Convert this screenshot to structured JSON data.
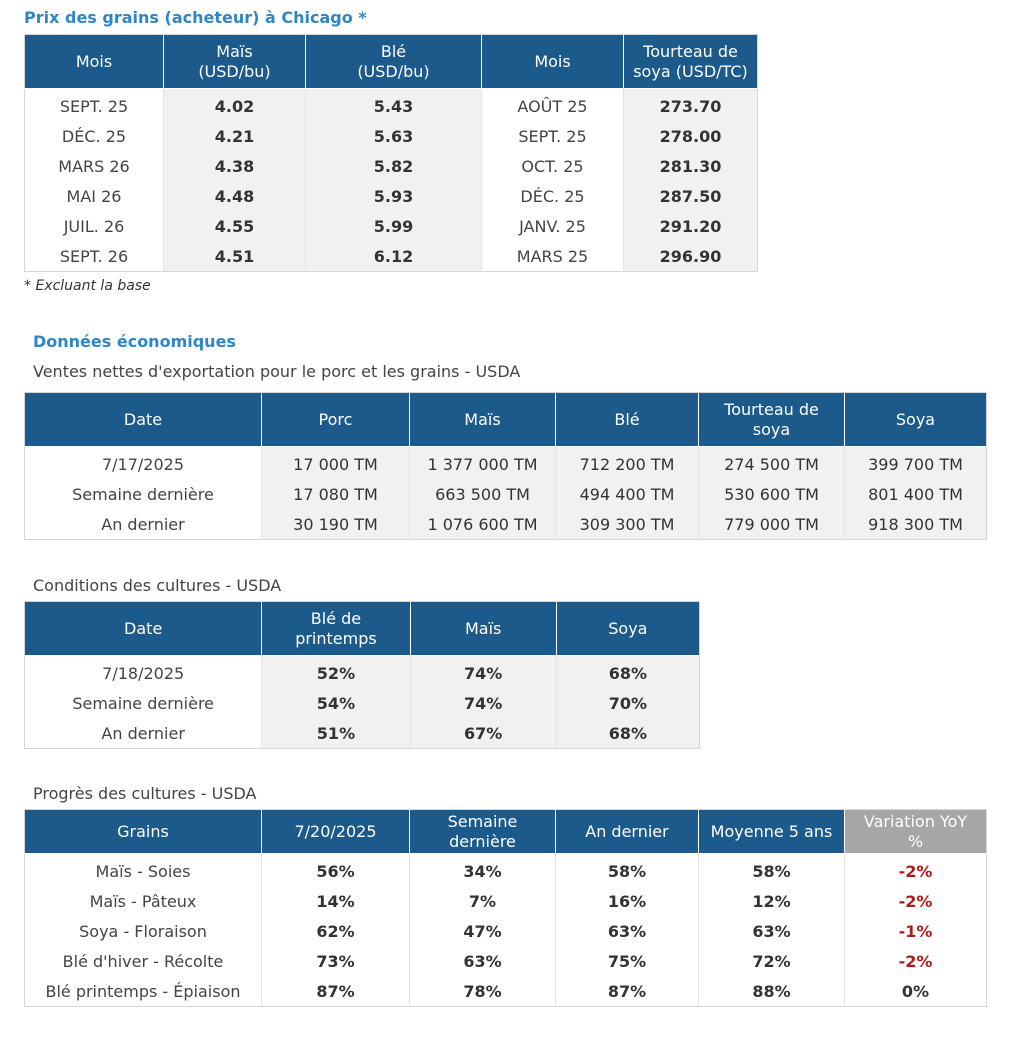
{
  "grain": {
    "title": "Prix des grains (acheteur) à Chicago *",
    "headers": [
      "Mois",
      "Maïs\n(USD/bu)",
      "Blé\n(USD/bu)",
      "Mois",
      "Tourteau de\nsoya (USD/TC)"
    ],
    "rows": [
      [
        "SEPT. 25",
        "4.02",
        "5.43",
        "AOÛT 25",
        "273.70"
      ],
      [
        "DÉC. 25",
        "4.21",
        "5.63",
        "SEPT. 25",
        "278.00"
      ],
      [
        "MARS 26",
        "4.38",
        "5.82",
        "OCT. 25",
        "281.30"
      ],
      [
        "MAI 26",
        "4.48",
        "5.93",
        "DÉC. 25",
        "287.50"
      ],
      [
        "JUIL. 26",
        "4.55",
        "5.99",
        "JANV. 25",
        "291.20"
      ],
      [
        "SEPT. 26",
        "4.51",
        "6.12",
        "MARS 25",
        "296.90"
      ]
    ],
    "footnote": "* Excluant la base"
  },
  "economic": {
    "title": "Données économiques",
    "sales": {
      "subtitle": "Ventes nettes d'exportation pour le porc et les grains - USDA",
      "headers": [
        "Date",
        "Porc",
        "Maïs",
        "Blé",
        "Tourteau de\nsoya",
        "Soya"
      ],
      "rows": [
        [
          "7/17/2025",
          "17 000 TM",
          "1 377 000 TM",
          "712 200 TM",
          "274 500 TM",
          "399 700 TM"
        ],
        [
          "Semaine dernière",
          "17 080 TM",
          "663 500 TM",
          "494 400 TM",
          "530 600 TM",
          "801 400 TM"
        ],
        [
          "An dernier",
          "30 190 TM",
          "1 076 600 TM",
          "309 300 TM",
          "779 000 TM",
          "918 300 TM"
        ]
      ]
    },
    "conditions": {
      "subtitle": "Conditions des cultures - USDA",
      "headers": [
        "Date",
        "Blé de\nprintemps",
        "Maïs",
        "Soya"
      ],
      "rows": [
        [
          "7/18/2025",
          "52%",
          "74%",
          "68%"
        ],
        [
          "Semaine dernière",
          "54%",
          "74%",
          "70%"
        ],
        [
          "An dernier",
          "51%",
          "67%",
          "68%"
        ]
      ]
    },
    "progress": {
      "subtitle": "Progrès des cultures - USDA",
      "headers": [
        "Grains",
        "7/20/2025",
        "Semaine\ndernière",
        "An dernier",
        "Moyenne 5 ans",
        "Variation YoY\n%"
      ],
      "rows": [
        [
          "Maïs - Soies",
          "56%",
          "34%",
          "58%",
          "58%",
          "-2%"
        ],
        [
          "Maïs - Pâteux",
          "14%",
          "7%",
          "16%",
          "12%",
          "-2%"
        ],
        [
          "Soya - Floraison",
          "62%",
          "47%",
          "63%",
          "63%",
          "-1%"
        ],
        [
          "Blé d'hiver - Récolte",
          "73%",
          "63%",
          "75%",
          "72%",
          "-2%"
        ],
        [
          "Blé printemps - Épiaison",
          "87%",
          "78%",
          "87%",
          "88%",
          "0%"
        ]
      ],
      "negative_color": "#b11a1a"
    }
  },
  "colors": {
    "header_bg": "#1d5a8c",
    "header_grey": "#a6a6a6",
    "title_blue": "#2e86c8",
    "shade": "#f1f1f1"
  }
}
